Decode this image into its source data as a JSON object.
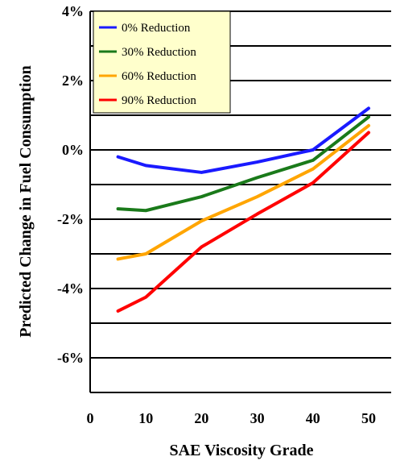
{
  "chart_data": {
    "type": "line",
    "title": "",
    "xlabel": "SAE Viscosity Grade",
    "ylabel": "Predicted Change in Fuel Consumption",
    "xlim": [
      0,
      50
    ],
    "ylim": [
      -7,
      4
    ],
    "xticks": [
      "0",
      "10",
      "20",
      "30",
      "40",
      "50"
    ],
    "yticks": [
      {
        "value": 4,
        "label": "4%"
      },
      {
        "value": 2,
        "label": "2%"
      },
      {
        "value": 0,
        "label": "0%"
      },
      {
        "value": -2,
        "label": "-2%"
      },
      {
        "value": -4,
        "label": "-4%"
      },
      {
        "value": -6,
        "label": "-6%"
      }
    ],
    "grid": true,
    "legend": "top-left",
    "series": [
      {
        "name": "0% Reduction",
        "color": "#1a1aff",
        "x": [
          5,
          10,
          20,
          30,
          40,
          50
        ],
        "y": [
          -0.2,
          -0.45,
          -0.65,
          -0.35,
          0.0,
          1.2
        ]
      },
      {
        "name": "30% Reduction",
        "color": "#1a7a1a",
        "x": [
          5,
          10,
          20,
          30,
          40,
          50
        ],
        "y": [
          -1.7,
          -1.75,
          -1.35,
          -0.8,
          -0.3,
          0.95
        ]
      },
      {
        "name": "60% Reduction",
        "color": "#ffa500",
        "x": [
          5,
          10,
          20,
          30,
          40,
          50
        ],
        "y": [
          -3.15,
          -3.0,
          -2.05,
          -1.35,
          -0.55,
          0.7
        ]
      },
      {
        "name": "90% Reduction",
        "color": "#ff0000",
        "x": [
          5,
          10,
          20,
          30,
          40,
          50
        ],
        "y": [
          -4.65,
          -4.25,
          -2.8,
          -1.85,
          -0.95,
          0.5
        ]
      }
    ]
  }
}
